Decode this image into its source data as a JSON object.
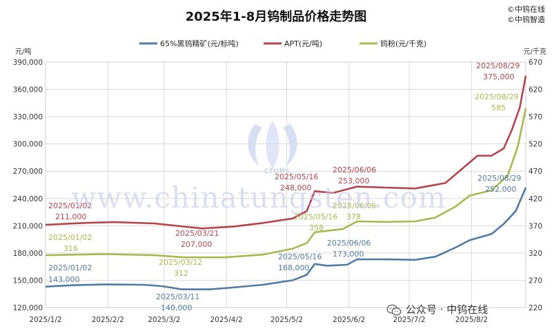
{
  "title": "2025年1-8月钨制品价格走势图",
  "credits": [
    "©中钨在线",
    "©中钨智造"
  ],
  "watermark": "www.chinatungsten.com",
  "logo_text": "CTOMS",
  "footer": "公众号 · 中钨在线",
  "chart_data": {
    "type": "line",
    "grid": true,
    "legend_position": "top",
    "y_left": {
      "unit": "元/吨",
      "range": [
        120000,
        390000
      ],
      "ticks": [
        120000,
        150000,
        180000,
        210000,
        240000,
        270000,
        300000,
        330000,
        360000,
        390000
      ],
      "tick_labels": [
        "120,000",
        "150,000",
        "180,000",
        "210,000",
        "240,000",
        "270,000",
        "300,000",
        "330,000",
        "360,000",
        "390,000"
      ]
    },
    "y_right": {
      "unit": "元/千克",
      "range": [
        220,
        670
      ],
      "ticks": [
        220,
        270,
        320,
        370,
        420,
        470,
        520,
        570,
        620,
        670
      ],
      "tick_labels": [
        "220",
        "270",
        "320",
        "370",
        "420",
        "470",
        "520",
        "570",
        "620",
        "670"
      ]
    },
    "x_range": [
      "2025-01-02",
      "2025-08-29"
    ],
    "x_ticks": [
      "2025-01-02",
      "2025-02-02",
      "2025-03-02",
      "2025-04-02",
      "2025-05-02",
      "2025-06-02",
      "2025-07-02",
      "2025-08-02"
    ],
    "x_tick_labels": [
      "2025/1/2",
      "2025/2/2",
      "2025/3/2",
      "2025/4/2",
      "2025/5/2",
      "2025/6/2",
      "2025/7/2",
      "2025/8/2"
    ],
    "series": [
      {
        "name": "65%黑钨精矿(元/标吨)",
        "axis": "left",
        "color": "#4f7aa3",
        "points": [
          [
            "2025-01-02",
            143000
          ],
          [
            "2025-01-15",
            144500
          ],
          [
            "2025-02-01",
            145500
          ],
          [
            "2025-02-20",
            145000
          ],
          [
            "2025-03-01",
            143500
          ],
          [
            "2025-03-11",
            140000
          ],
          [
            "2025-03-25",
            140000
          ],
          [
            "2025-04-05",
            142000
          ],
          [
            "2025-04-20",
            145000
          ],
          [
            "2025-05-05",
            150000
          ],
          [
            "2025-05-12",
            156000
          ],
          [
            "2025-05-16",
            168000
          ],
          [
            "2025-05-22",
            166000
          ],
          [
            "2025-06-01",
            167000
          ],
          [
            "2025-06-06",
            173000
          ],
          [
            "2025-06-20",
            173000
          ],
          [
            "2025-07-05",
            172500
          ],
          [
            "2025-07-15",
            176000
          ],
          [
            "2025-07-25",
            186000
          ],
          [
            "2025-08-01",
            194000
          ],
          [
            "2025-08-12",
            201000
          ],
          [
            "2025-08-18",
            212000
          ],
          [
            "2025-08-24",
            226000
          ],
          [
            "2025-08-29",
            252000
          ]
        ],
        "annotations": [
          {
            "date": "2025/01/02",
            "value": "143,000"
          },
          {
            "date": "2025/03/11",
            "value": "140,000"
          },
          {
            "date": "2025/05/16",
            "value": "168,000"
          },
          {
            "date": "2025/06/06",
            "value": "173,000"
          },
          {
            "date": "2025/08/29",
            "value": "252,000"
          }
        ]
      },
      {
        "name": "APT(元/吨)",
        "axis": "left",
        "color": "#b5434b",
        "points": [
          [
            "2025-01-02",
            211000
          ],
          [
            "2025-01-20",
            213000
          ],
          [
            "2025-02-05",
            214000
          ],
          [
            "2025-02-25",
            212500
          ],
          [
            "2025-03-10",
            209500
          ],
          [
            "2025-03-21",
            207000
          ],
          [
            "2025-04-05",
            209000
          ],
          [
            "2025-04-20",
            213000
          ],
          [
            "2025-05-05",
            218000
          ],
          [
            "2025-05-12",
            226000
          ],
          [
            "2025-05-16",
            248000
          ],
          [
            "2025-05-25",
            246000
          ],
          [
            "2025-06-06",
            253000
          ],
          [
            "2025-06-20",
            252000
          ],
          [
            "2025-07-05",
            251000
          ],
          [
            "2025-07-20",
            257000
          ],
          [
            "2025-07-28",
            272000
          ],
          [
            "2025-08-05",
            287000
          ],
          [
            "2025-08-12",
            287000
          ],
          [
            "2025-08-18",
            295000
          ],
          [
            "2025-08-22",
            315000
          ],
          [
            "2025-08-26",
            340000
          ],
          [
            "2025-08-29",
            375000
          ]
        ],
        "annotations": [
          {
            "date": "2025/01/02",
            "value": "211,000"
          },
          {
            "date": "2025/03/21",
            "value": "207,000"
          },
          {
            "date": "2025/05/16",
            "value": "248,000"
          },
          {
            "date": "2025/06/06",
            "value": "253,000"
          },
          {
            "date": "2025/08/29",
            "value": "375,000"
          }
        ]
      },
      {
        "name": "钨粉(元/千克)",
        "axis": "right",
        "color": "#a7b84c",
        "points": [
          [
            "2025-01-02",
            316
          ],
          [
            "2025-02-01",
            318
          ],
          [
            "2025-02-25",
            316
          ],
          [
            "2025-03-12",
            312
          ],
          [
            "2025-04-01",
            312
          ],
          [
            "2025-04-20",
            317
          ],
          [
            "2025-05-05",
            328
          ],
          [
            "2025-05-12",
            338
          ],
          [
            "2025-05-16",
            358
          ],
          [
            "2025-05-30",
            364
          ],
          [
            "2025-06-06",
            378
          ],
          [
            "2025-06-20",
            377
          ],
          [
            "2025-07-05",
            378
          ],
          [
            "2025-07-15",
            385
          ],
          [
            "2025-07-25",
            405
          ],
          [
            "2025-08-01",
            425
          ],
          [
            "2025-08-12",
            435
          ],
          [
            "2025-08-20",
            462
          ],
          [
            "2025-08-25",
            515
          ],
          [
            "2025-08-29",
            585
          ]
        ],
        "annotations": [
          {
            "date": "2025/01/02",
            "value": "316"
          },
          {
            "date": "2025/03/12",
            "value": "312"
          },
          {
            "date": "2025/05/16",
            "value": "358"
          },
          {
            "date": "2025/06/06",
            "value": "378"
          },
          {
            "date": "2025/08/29",
            "value": "585"
          }
        ]
      }
    ]
  }
}
